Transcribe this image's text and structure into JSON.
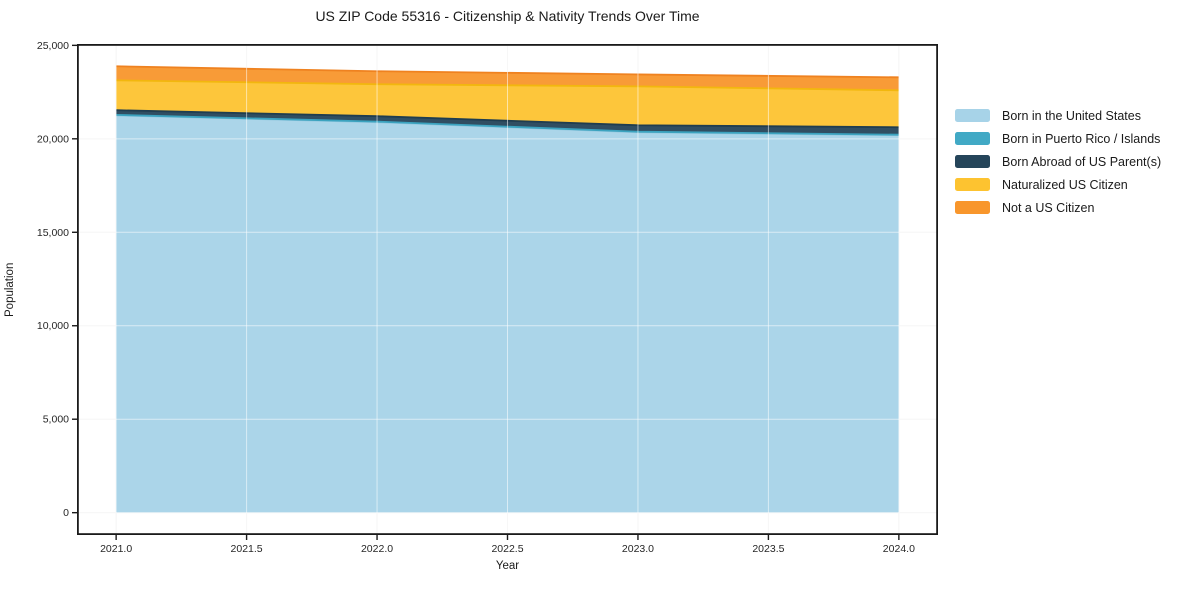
{
  "chart_data": {
    "type": "area",
    "stacked": true,
    "title": "US ZIP Code 55316 - Citizenship & Nativity Trends Over Time",
    "xlabel": "Year",
    "ylabel": "Population",
    "x": [
      2021,
      2022,
      2023,
      2024
    ],
    "series": [
      {
        "name": "Born in the United States",
        "color": "#A7D3E8",
        "edge_color": "#8FC6DE",
        "values": [
          21250,
          20890,
          20350,
          20190
        ]
      },
      {
        "name": "Born in Puerto Rico / Islands",
        "color": "#41A9C5",
        "edge_color": "#3BA3BF",
        "values": [
          30,
          30,
          30,
          30
        ]
      },
      {
        "name": "Born Abroad of US Parent(s)",
        "color": "#25455A",
        "edge_color": "#1F3D50",
        "values": [
          250,
          290,
          345,
          400
        ]
      },
      {
        "name": "Naturalized US Citizen",
        "color": "#FDC330",
        "edge_color": "#F2B70E",
        "values": [
          1600,
          1710,
          2080,
          1975
        ]
      },
      {
        "name": "Not a US Citizen",
        "color": "#F8962C",
        "edge_color": "#EF8220",
        "values": [
          750,
          695,
          640,
          695
        ]
      }
    ],
    "xlim": [
      2020.85,
      2024.15
    ],
    "ylim": [
      -1194,
      25072
    ],
    "xticks": {
      "values": [
        2021.0,
        2021.5,
        2022.0,
        2022.5,
        2023.0,
        2023.5,
        2024.0
      ],
      "labels": [
        "2021.0",
        "2021.5",
        "2022.0",
        "2022.5",
        "2023.0",
        "2023.5",
        "2024.0"
      ]
    },
    "yticks": {
      "values": [
        0,
        5000,
        10000,
        15000,
        20000,
        25000
      ],
      "labels": [
        "0",
        "5,000",
        "10,000",
        "15,000",
        "20,000",
        "25,000"
      ]
    },
    "grid": true,
    "legend_position": "right-outside",
    "spine_color": "#1a1a1a",
    "grid_color_under": "#ededed",
    "grid_color_over": "rgba(255,255,255,0.55)"
  }
}
